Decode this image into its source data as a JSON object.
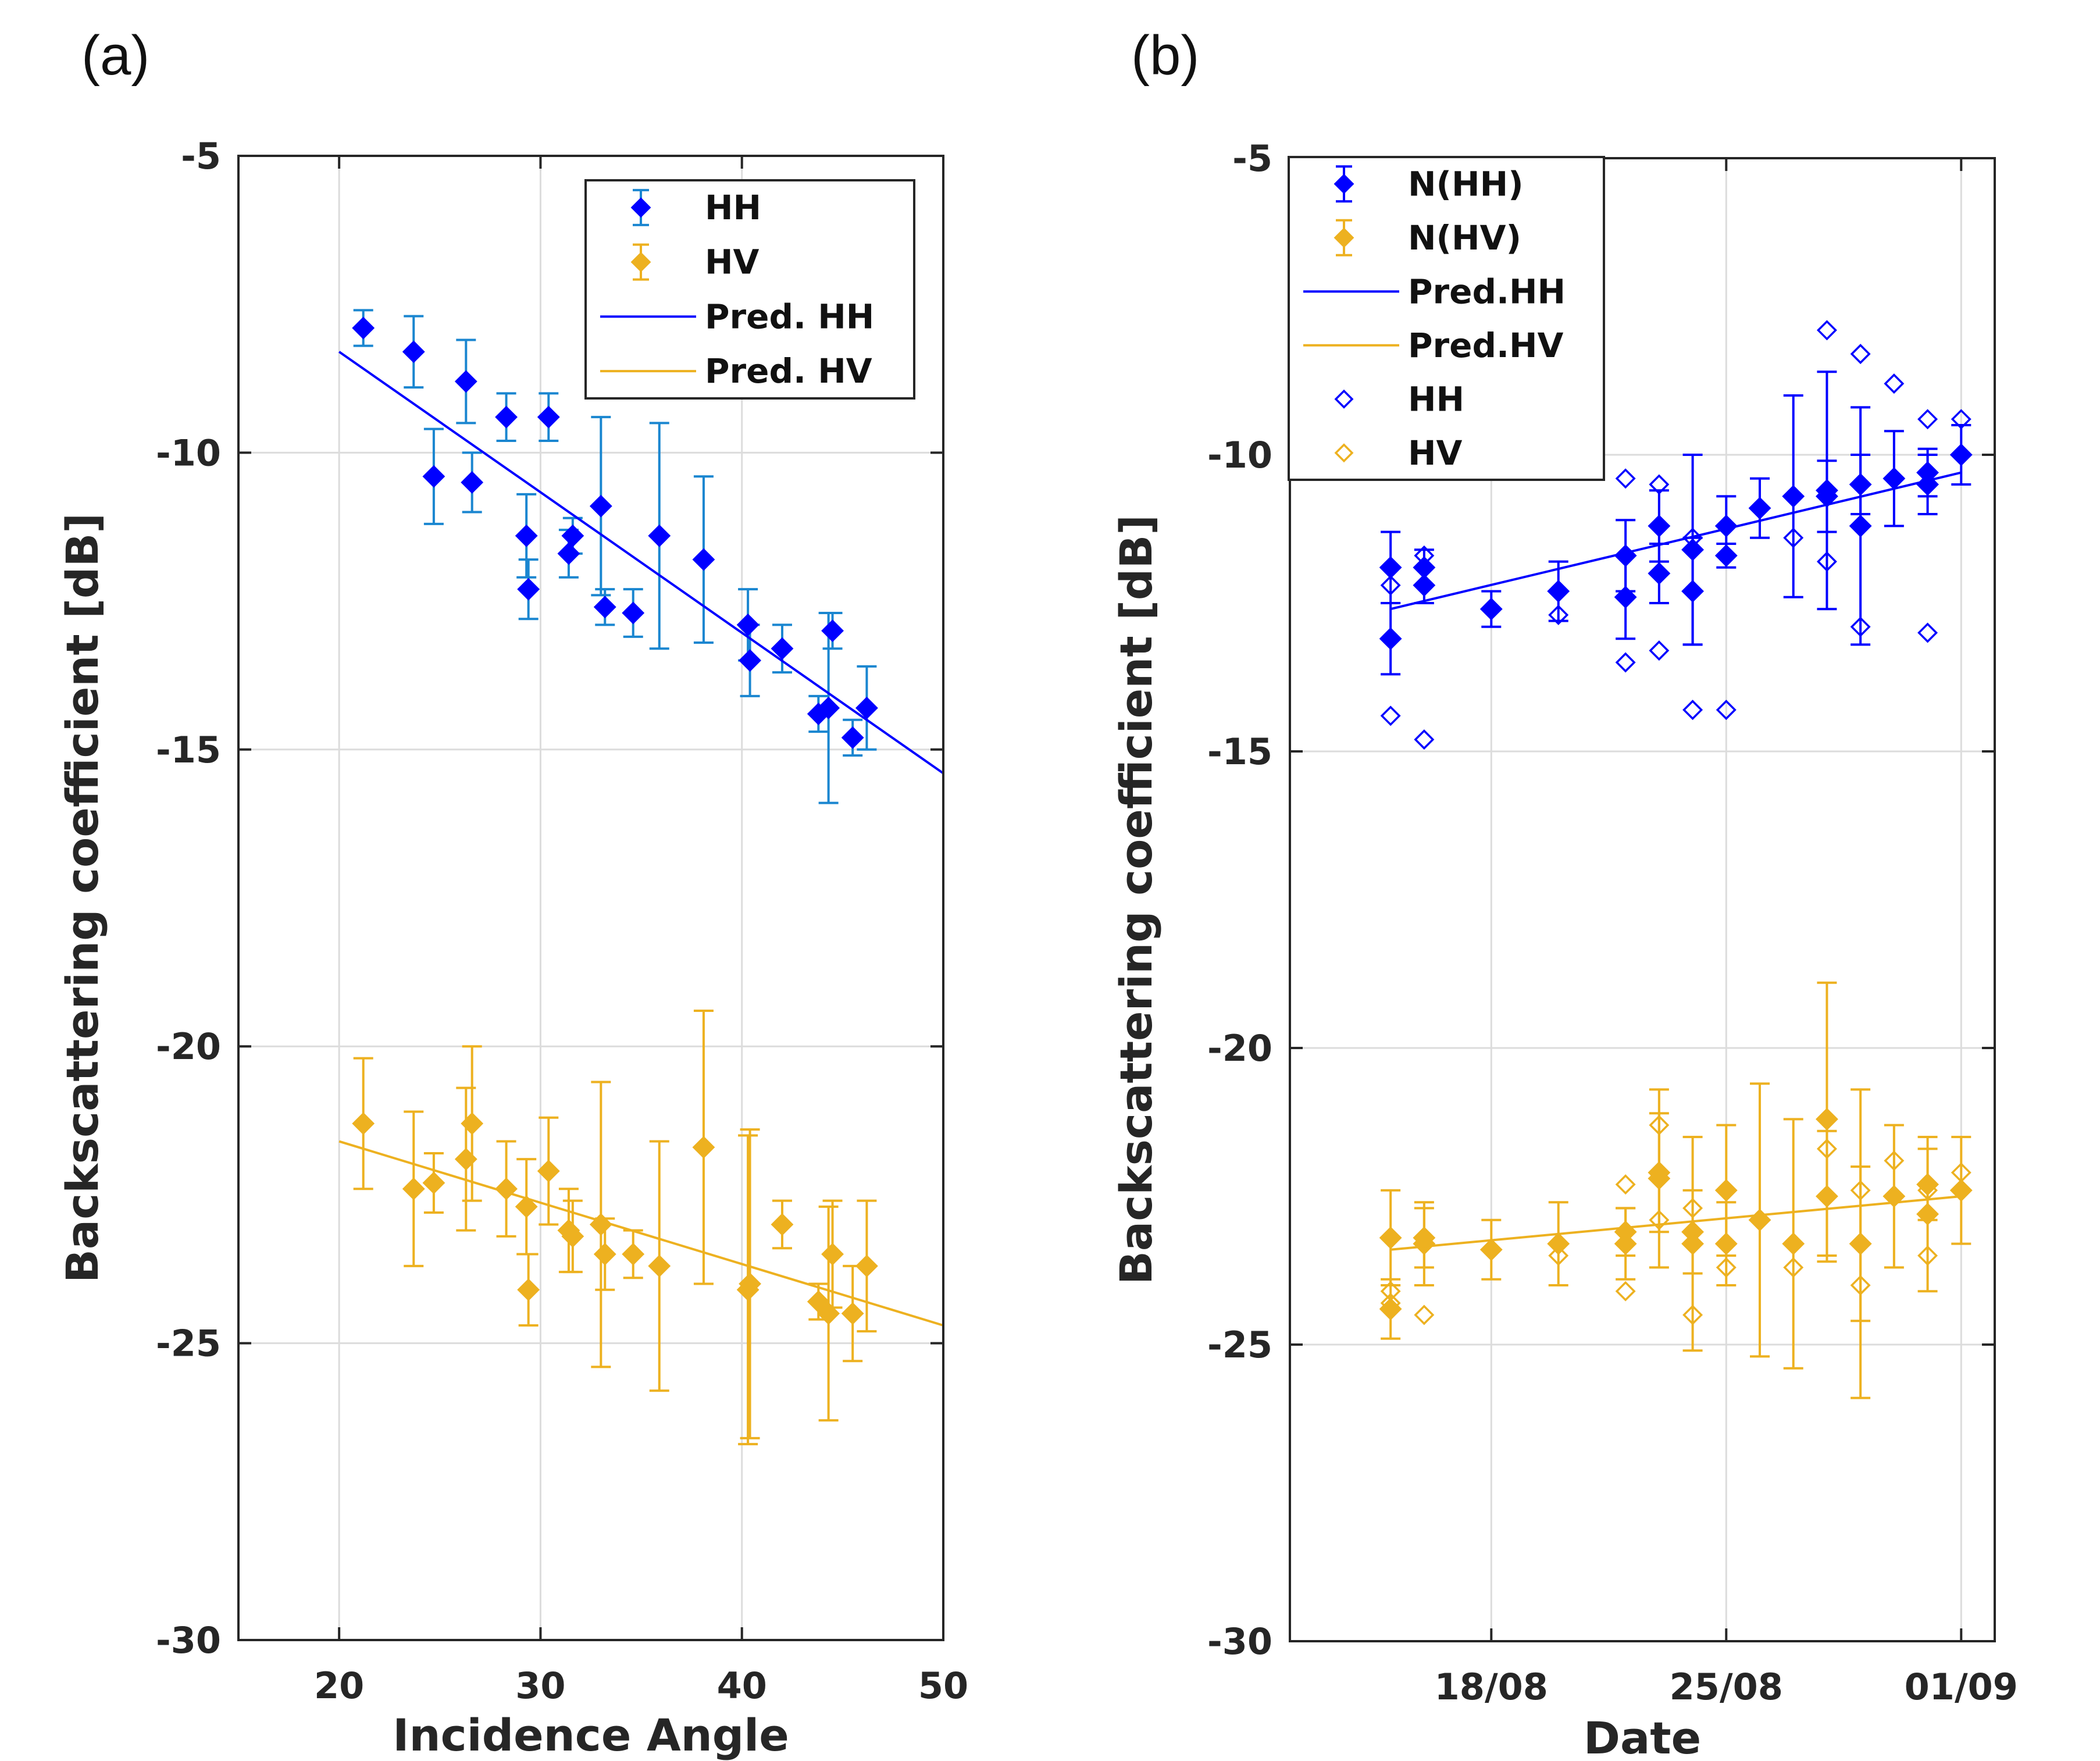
{
  "figure": {
    "labels": [
      "(a)",
      "(b)"
    ]
  },
  "colors": {
    "hh": "#0000ff",
    "hh_err": "#1a86d0",
    "hv": "#edb120",
    "pred_hh": "#0000ff",
    "pred_hv": "#edb120"
  },
  "chart_data": [
    {
      "panel": "(a)",
      "type": "scatter",
      "title": "",
      "xlabel": "Incidence Angle",
      "ylabel": "Backscattering coefficient [dB]",
      "xlim": [
        15,
        50
      ],
      "ylim": [
        -30,
        -5
      ],
      "xticks": [
        20,
        30,
        40,
        50
      ],
      "yticks": [
        -30,
        -25,
        -20,
        -15,
        -10,
        -5
      ],
      "grid": true,
      "legend": {
        "position": "top-right",
        "entries": [
          "HH",
          "HV",
          "Pred. HH",
          "Pred. HV"
        ]
      },
      "series": [
        {
          "name": "HH",
          "kind": "errorbar",
          "color": "#0000ff",
          "err_color": "#1a86d0",
          "x": [
            21.2,
            23.7,
            24.7,
            26.3,
            26.6,
            28.3,
            29.3,
            29.4,
            30.4,
            31.4,
            31.6,
            33.0,
            33.2,
            34.6,
            35.9,
            38.1,
            40.3,
            40.4,
            42.0,
            43.8,
            44.3,
            44.5,
            45.5,
            46.2
          ],
          "y": [
            -7.9,
            -8.3,
            -10.4,
            -8.8,
            -10.5,
            -9.4,
            -11.4,
            -12.3,
            -9.4,
            -11.7,
            -11.4,
            -10.9,
            -12.6,
            -12.7,
            -11.4,
            -11.8,
            -12.9,
            -13.5,
            -13.3,
            -14.4,
            -14.3,
            -13.0,
            -14.8,
            -14.3
          ],
          "err": [
            0.3,
            0.6,
            0.8,
            0.7,
            0.5,
            0.4,
            0.7,
            0.5,
            0.4,
            0.4,
            0.3,
            1.5,
            0.3,
            0.4,
            1.9,
            1.4,
            0.6,
            0.6,
            0.4,
            0.3,
            1.6,
            0.3,
            0.3,
            0.7
          ]
        },
        {
          "name": "HV",
          "kind": "errorbar",
          "color": "#edb120",
          "x": [
            21.2,
            23.7,
            24.7,
            26.3,
            26.6,
            28.3,
            29.3,
            29.4,
            30.4,
            31.4,
            31.6,
            33.0,
            33.2,
            34.6,
            35.9,
            38.1,
            40.3,
            40.4,
            42.0,
            43.8,
            44.3,
            44.5,
            45.5,
            46.2
          ],
          "y": [
            -21.3,
            -22.4,
            -22.3,
            -21.9,
            -21.3,
            -22.4,
            -22.7,
            -24.1,
            -22.1,
            -23.1,
            -23.2,
            -23.0,
            -23.5,
            -23.5,
            -23.7,
            -21.7,
            -24.1,
            -24.0,
            -23.0,
            -24.3,
            -24.5,
            -23.5,
            -24.5,
            -23.7
          ],
          "err": [
            1.1,
            1.3,
            0.5,
            1.2,
            1.3,
            0.8,
            0.8,
            0.6,
            0.9,
            0.7,
            0.6,
            2.4,
            0.6,
            0.4,
            2.1,
            2.3,
            2.6,
            2.6,
            0.4,
            0.3,
            1.8,
            0.9,
            0.8,
            1.1
          ]
        },
        {
          "name": "Pred. HH",
          "kind": "line",
          "color": "#0000ff",
          "x": [
            20,
            50
          ],
          "y": [
            -8.3,
            -15.4
          ]
        },
        {
          "name": "Pred. HV",
          "kind": "line",
          "color": "#edb120",
          "x": [
            20,
            50
          ],
          "y": [
            -21.6,
            -24.7
          ]
        }
      ]
    },
    {
      "panel": "(b)",
      "type": "scatter",
      "title": "",
      "xlabel": "Date",
      "ylabel": "Backscattering coefficient [dB]",
      "xlim": [
        12,
        33
      ],
      "ylim": [
        -30,
        -5
      ],
      "x_unit": "day of August (32 = 01/09)",
      "xticks": [
        18,
        25,
        32
      ],
      "xticklabels": [
        "18/08",
        "25/08",
        "01/09"
      ],
      "yticks": [
        -30,
        -25,
        -20,
        -15,
        -10,
        -5
      ],
      "grid": true,
      "legend": {
        "position": "top-left",
        "entries": [
          "N(HH)",
          "N(HV)",
          "Pred.HH",
          "Pred.HV",
          "HH",
          "HV"
        ]
      },
      "series": [
        {
          "name": "N(HH)",
          "kind": "errorbar",
          "color": "#0000ff",
          "x": [
            15.0,
            15.0,
            16.0,
            16.0,
            18.0,
            20.0,
            22.0,
            22.0,
            23.0,
            23.0,
            24.0,
            24.0,
            25.0,
            25.0,
            26.0,
            27.0,
            28.0,
            28.0,
            29.0,
            29.0,
            30.0,
            31.0,
            31.0,
            32.0
          ],
          "y": [
            -11.9,
            -13.1,
            -12.2,
            -11.9,
            -12.6,
            -12.3,
            -11.7,
            -12.4,
            -11.2,
            -12.0,
            -11.6,
            -12.3,
            -11.2,
            -11.7,
            -10.9,
            -10.7,
            -10.6,
            -10.7,
            -10.5,
            -11.2,
            -10.4,
            -10.3,
            -10.5,
            -10.0
          ],
          "err": [
            0.6,
            0.6,
            0.3,
            0.3,
            0.3,
            0.5,
            0.6,
            0.7,
            0.6,
            0.5,
            1.6,
            0.9,
            0.5,
            0.2,
            0.5,
            1.7,
            2.0,
            0.6,
            0.5,
            2.0,
            0.8,
            0.4,
            0.5,
            0.5
          ]
        },
        {
          "name": "N(HV)",
          "kind": "errorbar",
          "color": "#edb120",
          "x": [
            15.0,
            15.0,
            16.0,
            16.0,
            18.0,
            20.0,
            22.0,
            22.0,
            23.0,
            23.0,
            24.0,
            24.0,
            25.0,
            25.0,
            26.0,
            27.0,
            28.0,
            28.0,
            29.0,
            29.0,
            30.0,
            31.0,
            31.0,
            32.0
          ],
          "y": [
            -23.2,
            -24.4,
            -23.3,
            -23.2,
            -23.4,
            -23.3,
            -23.1,
            -23.3,
            -22.2,
            -22.1,
            -23.1,
            -23.3,
            -22.4,
            -23.3,
            -22.9,
            -23.3,
            -21.2,
            -22.5,
            -23.3,
            -23.3,
            -22.5,
            -22.3,
            -22.8,
            -22.4
          ],
          "err": [
            0.8,
            0.5,
            0.7,
            0.5,
            0.5,
            0.7,
            0.4,
            0.6,
            1.5,
            1.0,
            0.7,
            1.8,
            1.1,
            0.7,
            2.3,
            2.1,
            2.3,
            1.1,
            1.3,
            2.6,
            1.2,
            0.6,
            1.3,
            0.9
          ]
        },
        {
          "name": "Pred.HH",
          "kind": "line",
          "color": "#0000ff",
          "x": [
            15,
            32
          ],
          "y": [
            -12.6,
            -10.3
          ]
        },
        {
          "name": "Pred.HV",
          "kind": "line",
          "color": "#edb120",
          "x": [
            15,
            32
          ],
          "y": [
            -23.4,
            -22.5
          ]
        },
        {
          "name": "HH",
          "kind": "marker_open",
          "color": "#0000ff",
          "x": [
            15.0,
            15.0,
            16.0,
            16.0,
            20.0,
            22.0,
            22.0,
            23.0,
            23.0,
            24.0,
            24.0,
            25.0,
            27.0,
            28.0,
            28.0,
            29.0,
            29.0,
            30.0,
            31.0,
            31.0,
            32.0
          ],
          "y": [
            -12.2,
            -14.4,
            -11.7,
            -14.8,
            -12.7,
            -10.4,
            -13.5,
            -10.5,
            -13.3,
            -11.4,
            -14.3,
            -14.3,
            -11.4,
            -7.9,
            -11.8,
            -8.3,
            -12.9,
            -8.8,
            -9.4,
            -13.0,
            -9.4
          ]
        },
        {
          "name": "HV",
          "kind": "marker_open",
          "color": "#edb120",
          "x": [
            15.0,
            15.0,
            16.0,
            16.0,
            20.0,
            22.0,
            22.0,
            23.0,
            23.0,
            24.0,
            24.0,
            25.0,
            27.0,
            28.0,
            28.0,
            29.0,
            29.0,
            30.0,
            31.0,
            31.0,
            32.0
          ],
          "y": [
            -24.1,
            -24.3,
            -23.2,
            -24.5,
            -23.5,
            -22.3,
            -24.1,
            -21.3,
            -22.9,
            -22.7,
            -24.5,
            -23.7,
            -23.7,
            -21.7,
            -21.2,
            -22.4,
            -24.0,
            -21.9,
            -22.4,
            -23.5,
            -22.1
          ]
        }
      ]
    }
  ]
}
